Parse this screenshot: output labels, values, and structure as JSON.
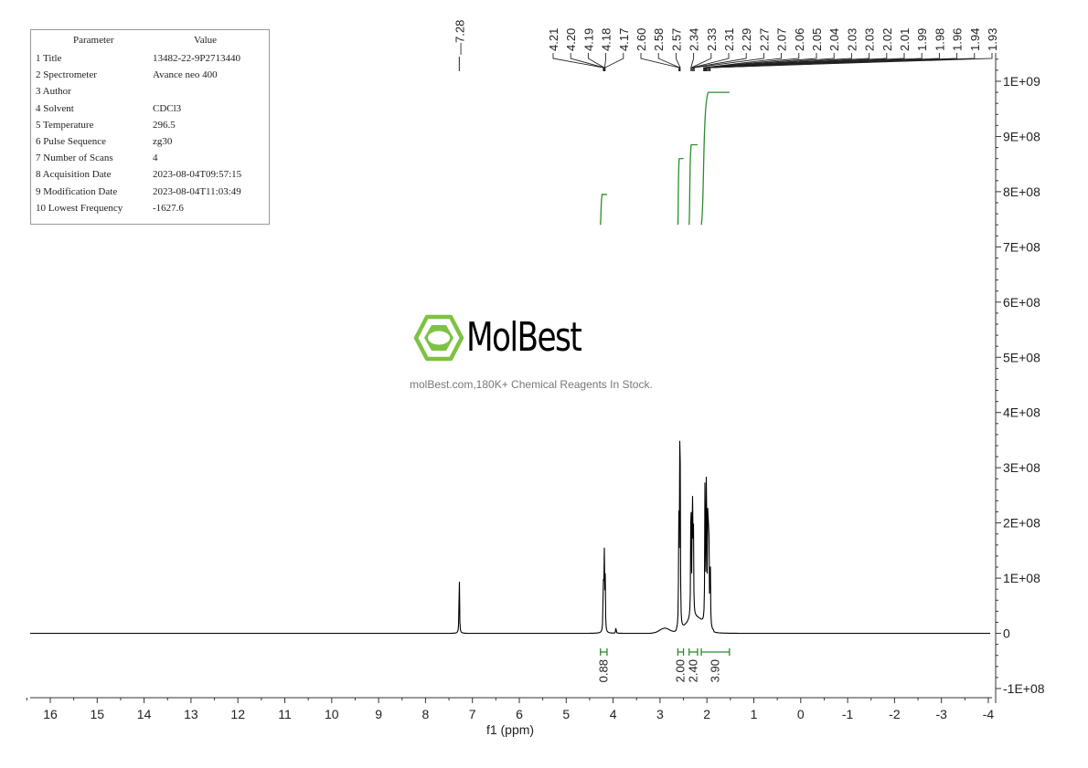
{
  "param_table": {
    "header_param": "Parameter",
    "header_value": "Value",
    "rows": [
      {
        "label": "1  Title",
        "value": "13482-22-9P2713440"
      },
      {
        "label": "2  Spectrometer",
        "value": "Avance neo 400"
      },
      {
        "label": "3  Author",
        "value": ""
      },
      {
        "label": "4  Solvent",
        "value": "CDCl3"
      },
      {
        "label": "5  Temperature",
        "value": "296.5"
      },
      {
        "label": "6  Pulse Sequence",
        "value": "zg30"
      },
      {
        "label": "7  Number of Scans",
        "value": "4"
      },
      {
        "label": "8  Acquisition Date",
        "value": "2023-08-04T09:57:15"
      },
      {
        "label": "9  Modification Date",
        "value": "2023-08-04T11:03:49"
      },
      {
        "label": "10 Lowest Frequency",
        "value": "-1627.6"
      }
    ]
  },
  "watermark": {
    "brand": "MolBest",
    "tagline": "molBest.com,180K+ Chemical Reagents In Stock.",
    "color": "#7dc242"
  },
  "chart_data": {
    "type": "line",
    "xlabel": "f1 (ppm)",
    "ylabel": "",
    "xlim": [
      16.5,
      -4
    ],
    "ylim": [
      -120000000,
      1020000000
    ],
    "x_ticks": [
      16,
      15,
      14,
      13,
      12,
      11,
      10,
      9,
      8,
      7,
      6,
      5,
      4,
      3,
      2,
      1,
      0,
      -1,
      -2,
      -3,
      -4
    ],
    "x_tick_labels": [
      "16",
      "15",
      "14",
      "13",
      "12",
      "11",
      "10",
      "9",
      "8",
      "7",
      "6",
      "5",
      "4",
      "3",
      "2",
      "1",
      "0",
      "-1",
      "-2",
      "-3",
      "-4"
    ],
    "y_ticks": [
      -100000000,
      0,
      100000000,
      200000000,
      300000000,
      400000000,
      500000000,
      600000000,
      700000000,
      800000000,
      900000000,
      1000000000
    ],
    "y_tick_labels": [
      "-1E+08",
      "0",
      "1E+08",
      "2E+08",
      "3E+08",
      "4E+08",
      "5E+08",
      "6E+08",
      "7E+08",
      "8E+08",
      "9E+08",
      "1E+09"
    ],
    "peaks": [
      {
        "ppm": 7.28,
        "height": 120000000
      },
      {
        "ppm": 4.21,
        "height": 100000000
      },
      {
        "ppm": 4.19,
        "height": 168000000
      },
      {
        "ppm": 4.17,
        "height": 110000000
      },
      {
        "ppm": 3.94,
        "height": 12000000
      },
      {
        "ppm": 2.6,
        "height": 195000000
      },
      {
        "ppm": 2.58,
        "height": 262000000
      },
      {
        "ppm": 2.57,
        "height": 240000000
      },
      {
        "ppm": 2.34,
        "height": 285000000
      },
      {
        "ppm": 2.31,
        "height": 270000000
      },
      {
        "ppm": 2.29,
        "height": 200000000
      },
      {
        "ppm": 2.04,
        "height": 300000000
      },
      {
        "ppm": 2.01,
        "height": 335000000
      },
      {
        "ppm": 1.98,
        "height": 280000000
      },
      {
        "ppm": 1.96,
        "height": 230000000
      },
      {
        "ppm": 1.93,
        "height": 150000000
      }
    ],
    "peak_labels": [
      {
        "text": "7.28",
        "ppm": 7.28
      },
      {
        "text": "4.21",
        "ppm": 4.21
      },
      {
        "text": "4.20",
        "ppm": 4.2
      },
      {
        "text": "4.19",
        "ppm": 4.19
      },
      {
        "text": "4.18",
        "ppm": 4.18
      },
      {
        "text": "4.17",
        "ppm": 4.17
      },
      {
        "text": "2.60",
        "ppm": 2.6
      },
      {
        "text": "2.58",
        "ppm": 2.58
      },
      {
        "text": "2.57",
        "ppm": 2.57
      },
      {
        "text": "2.34",
        "ppm": 2.34
      },
      {
        "text": "2.33",
        "ppm": 2.33
      },
      {
        "text": "2.31",
        "ppm": 2.31
      },
      {
        "text": "2.29",
        "ppm": 2.29
      },
      {
        "text": "2.27",
        "ppm": 2.27
      },
      {
        "text": "2.07",
        "ppm": 2.07
      },
      {
        "text": "2.06",
        "ppm": 2.06
      },
      {
        "text": "2.05",
        "ppm": 2.05
      },
      {
        "text": "2.04",
        "ppm": 2.04
      },
      {
        "text": "2.03",
        "ppm": 2.03
      },
      {
        "text": "2.03",
        "ppm": 2.03
      },
      {
        "text": "2.02",
        "ppm": 2.02
      },
      {
        "text": "2.01",
        "ppm": 2.01
      },
      {
        "text": "1.99",
        "ppm": 1.99
      },
      {
        "text": "1.98",
        "ppm": 1.98
      },
      {
        "text": "1.96",
        "ppm": 1.96
      },
      {
        "text": "1.94",
        "ppm": 1.94
      },
      {
        "text": "1.93",
        "ppm": 1.93
      }
    ],
    "integrals": [
      {
        "label": "0.88",
        "from": 4.27,
        "to": 4.13,
        "curve_bottom": 740000000,
        "curve_top": 795000000
      },
      {
        "label": "2.00",
        "from": 2.62,
        "to": 2.5,
        "curve_bottom": 740000000,
        "curve_top": 860000000
      },
      {
        "label": "2.40",
        "from": 2.38,
        "to": 2.2,
        "curve_bottom": 740000000,
        "curve_top": 885000000
      },
      {
        "label": "3.90",
        "from": 2.12,
        "to": 1.52,
        "curve_bottom": 740000000,
        "curve_top": 980000000
      }
    ],
    "line_color": "#000000",
    "integral_color": "#2e8b2e",
    "grid": false
  }
}
